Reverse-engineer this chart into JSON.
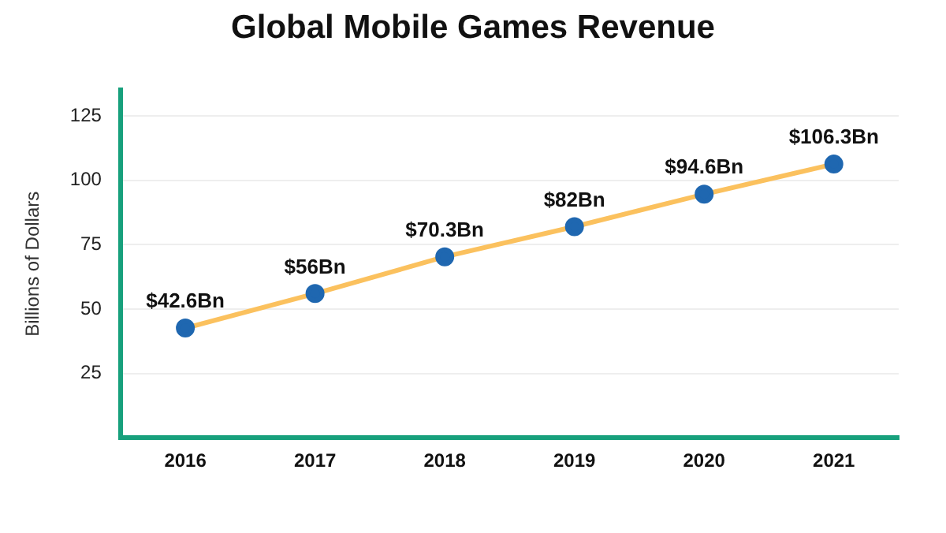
{
  "chart_data": {
    "type": "line",
    "title": "Global Mobile Games Revenue",
    "ylabel": "Billions of Dollars",
    "categories": [
      "2016",
      "2017",
      "2018",
      "2019",
      "2020",
      "2021"
    ],
    "series": [
      {
        "color": "#fbc15e",
        "values": [
          42.6,
          56,
          70.3,
          82,
          94.6,
          106.3
        ],
        "value_labels": [
          "$42.6Bn",
          "$56Bn",
          "$70.3Bn",
          "$82Bn",
          "$94.6Bn",
          "$106.3Bn"
        ]
      }
    ],
    "ylim": [
      0,
      135
    ],
    "yticks": [
      {
        "value": 0,
        "label": null
      },
      25,
      50,
      75,
      100,
      125
    ],
    "grid": "y",
    "marker": "circle",
    "legend": false
  }
}
